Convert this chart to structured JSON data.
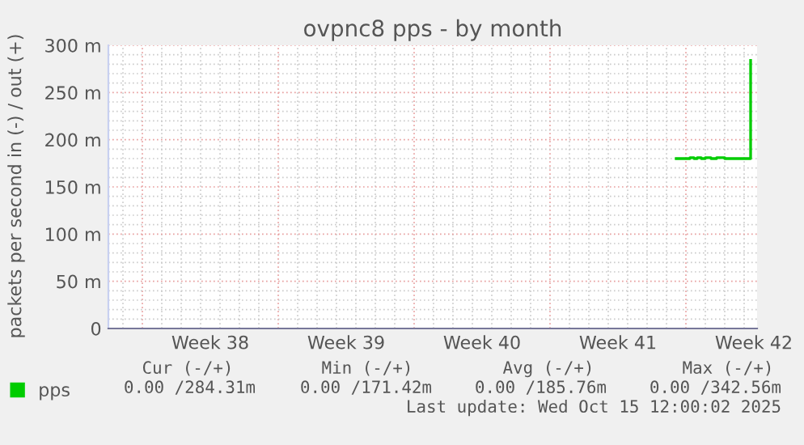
{
  "chart_data": {
    "type": "step",
    "title": "ovpnc8 pps - by month",
    "ylabel": "packets per second in (-) / out (+)",
    "x": [
      "2025-10-11T12:00",
      "2025-10-12T00:00",
      "2025-10-12T05:00",
      "2025-10-12T10:00",
      "2025-10-12T14:00",
      "2025-10-12T19:00",
      "2025-10-13T00:00",
      "2025-10-13T07:00",
      "2025-10-13T14:00",
      "2025-10-14T00:00",
      "2025-10-15T04:00",
      "2025-10-15T08:00"
    ],
    "series": [
      {
        "name": "pps",
        "color": "#00cc00",
        "values": [
          180,
          180,
          181,
          180,
          181,
          180,
          181,
          180,
          181,
          180,
          180,
          284
        ]
      }
    ],
    "xlim": [
      "2025-09-12T06:00",
      "2025-10-15T16:00"
    ],
    "xticks": [
      {
        "value": "2025-09-14",
        "label": null
      },
      {
        "value": "2025-09-17T12:00",
        "label": "Week 38"
      },
      {
        "value": "2025-09-21",
        "label": null
      },
      {
        "value": "2025-09-24T12:00",
        "label": "Week 39"
      },
      {
        "value": "2025-09-28",
        "label": null
      },
      {
        "value": "2025-10-01T12:00",
        "label": "Week 40"
      },
      {
        "value": "2025-10-05",
        "label": null
      },
      {
        "value": "2025-10-08T12:00",
        "label": "Week 41"
      },
      {
        "value": "2025-10-12",
        "label": null
      },
      {
        "value": "2025-10-15T12:00",
        "label": "Week 42"
      }
    ],
    "ylim": [
      0,
      300
    ],
    "yticks": [
      0,
      {
        "value": 50,
        "label": "50 m"
      },
      {
        "value": 100,
        "label": "100 m"
      },
      {
        "value": 150,
        "label": "150 m"
      },
      {
        "value": 200,
        "label": "200 m"
      },
      {
        "value": 250,
        "label": "250 m"
      },
      {
        "value": 300,
        "label": "300 m"
      }
    ],
    "grid": true,
    "legend": "bottom left",
    "marker": "none",
    "line_style": "solid",
    "annotations": [
      "Cur (-/+)",
      "Min (-/+)",
      "Avg (-/+)",
      "Max (-/+)",
      "0.00 /284.31m",
      "0.00 /171.42m",
      "0.00 /185.76m",
      "0.00 /342.56m",
      "Last update: Wed Oct 15 12:00:02 2025"
    ]
  }
}
